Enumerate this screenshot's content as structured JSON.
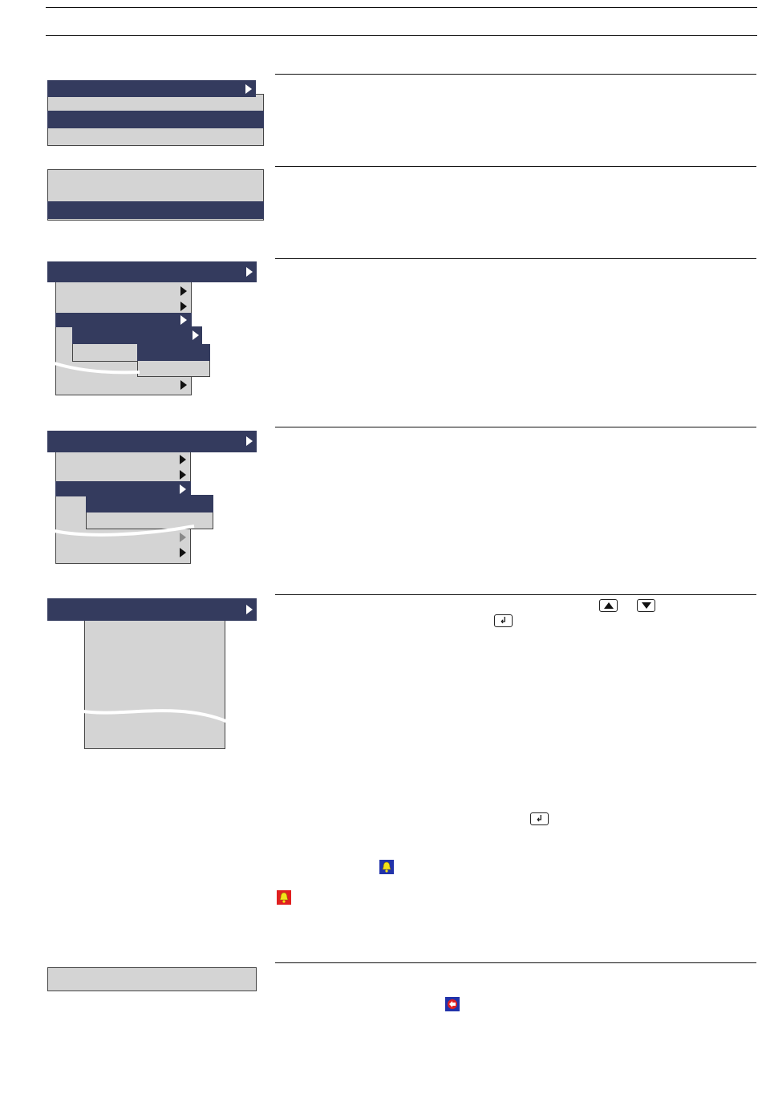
{
  "colors": {
    "menu_selected": "#343b5e",
    "menu_background": "#d4d4d4",
    "rule": "#000000",
    "alarm_icon_blue": "#2233aa",
    "alarm_icon_red": "#e02020",
    "alarm_bell_yellow": "#f3e21a"
  },
  "icons": {
    "up_key": "up-arrow-key-icon",
    "down_key": "down-arrow-key-icon",
    "enter_key": "enter-key-icon",
    "alarm_blue": "alarm-bell-blue-icon",
    "alarm_red": "alarm-bell-red-icon",
    "acknowledge": "acknowledge-icon"
  },
  "sections": [
    {
      "id": "menu-pair",
      "text": ""
    },
    {
      "id": "menu-single",
      "text": ""
    },
    {
      "id": "submenu-cascade",
      "text": ""
    },
    {
      "id": "submenu-inactive",
      "text": ""
    },
    {
      "id": "list-navigation",
      "text": ""
    },
    {
      "id": "status-bar",
      "text": ""
    }
  ]
}
